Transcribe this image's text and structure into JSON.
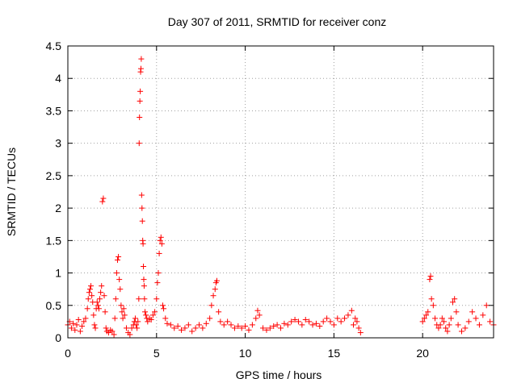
{
  "chart_data": {
    "type": "scatter",
    "title": "Day 307 of 2011, SRMTID for receiver conz",
    "xlabel": "GPS time / hours",
    "ylabel": "SRMTID / TECUs",
    "xlim": [
      0,
      24
    ],
    "ylim": [
      0,
      4.5
    ],
    "x_ticks": [
      0,
      5,
      10,
      15,
      20
    ],
    "x_tick_labels": [
      "0",
      "5",
      "10",
      "15",
      "20"
    ],
    "y_ticks": [
      0,
      0.5,
      1,
      1.5,
      2,
      2.5,
      3,
      3.5,
      4,
      4.5
    ],
    "y_tick_labels": [
      "0",
      "0.5",
      "1",
      "1.5",
      "2",
      "2.5",
      "3",
      "3.5",
      "4",
      "4.5"
    ],
    "grid": true,
    "marker": "+",
    "series": [
      {
        "color": "#ff0000",
        "points": [
          [
            0.0,
            0.2
          ],
          [
            0.1,
            0.25
          ],
          [
            0.2,
            0.15
          ],
          [
            0.3,
            0.22
          ],
          [
            0.4,
            0.12
          ],
          [
            0.5,
            0.2
          ],
          [
            0.6,
            0.28
          ],
          [
            0.7,
            0.1
          ],
          [
            0.8,
            0.18
          ],
          [
            0.9,
            0.25
          ],
          [
            1.0,
            0.3
          ],
          [
            1.1,
            0.45
          ],
          [
            1.15,
            0.6
          ],
          [
            1.2,
            0.7
          ],
          [
            1.25,
            0.75
          ],
          [
            1.3,
            0.8
          ],
          [
            1.35,
            0.65
          ],
          [
            1.4,
            0.55
          ],
          [
            1.45,
            0.35
          ],
          [
            1.5,
            0.2
          ],
          [
            1.55,
            0.15
          ],
          [
            1.6,
            0.45
          ],
          [
            1.65,
            0.55
          ],
          [
            1.7,
            0.5
          ],
          [
            1.75,
            0.45
          ],
          [
            1.8,
            0.6
          ],
          [
            1.85,
            0.7
          ],
          [
            1.9,
            0.8
          ],
          [
            1.95,
            2.1
          ],
          [
            2.0,
            2.15
          ],
          [
            2.05,
            0.65
          ],
          [
            2.1,
            0.4
          ],
          [
            2.15,
            0.15
          ],
          [
            2.2,
            0.1
          ],
          [
            2.3,
            0.08
          ],
          [
            2.4,
            0.12
          ],
          [
            2.5,
            0.1
          ],
          [
            2.6,
            0.05
          ],
          [
            2.65,
            0.3
          ],
          [
            2.7,
            0.6
          ],
          [
            2.75,
            1.0
          ],
          [
            2.8,
            1.2
          ],
          [
            2.85,
            1.25
          ],
          [
            2.9,
            0.9
          ],
          [
            2.95,
            0.75
          ],
          [
            3.0,
            0.5
          ],
          [
            3.05,
            0.4
          ],
          [
            3.1,
            0.3
          ],
          [
            3.15,
            0.45
          ],
          [
            3.2,
            0.35
          ],
          [
            3.3,
            0.15
          ],
          [
            3.4,
            0.08
          ],
          [
            3.5,
            0.05
          ],
          [
            3.6,
            0.15
          ],
          [
            3.7,
            0.2
          ],
          [
            3.75,
            0.25
          ],
          [
            3.8,
            0.3
          ],
          [
            3.85,
            0.2
          ],
          [
            3.9,
            0.15
          ],
          [
            3.95,
            0.25
          ],
          [
            4.0,
            0.6
          ],
          [
            4.02,
            3.0
          ],
          [
            4.04,
            3.4
          ],
          [
            4.06,
            3.65
          ],
          [
            4.08,
            3.8
          ],
          [
            4.1,
            4.1
          ],
          [
            4.12,
            4.15
          ],
          [
            4.14,
            4.3
          ],
          [
            4.16,
            2.2
          ],
          [
            4.18,
            2.0
          ],
          [
            4.2,
            1.8
          ],
          [
            4.22,
            1.5
          ],
          [
            4.24,
            1.45
          ],
          [
            4.26,
            1.1
          ],
          [
            4.28,
            0.9
          ],
          [
            4.3,
            0.8
          ],
          [
            4.32,
            0.6
          ],
          [
            4.35,
            0.4
          ],
          [
            4.4,
            0.35
          ],
          [
            4.45,
            0.3
          ],
          [
            4.5,
            0.25
          ],
          [
            4.6,
            0.3
          ],
          [
            4.7,
            0.28
          ],
          [
            4.8,
            0.35
          ],
          [
            4.9,
            0.4
          ],
          [
            5.0,
            0.6
          ],
          [
            5.05,
            0.85
          ],
          [
            5.1,
            1.0
          ],
          [
            5.15,
            1.3
          ],
          [
            5.2,
            1.5
          ],
          [
            5.25,
            1.55
          ],
          [
            5.3,
            1.45
          ],
          [
            5.35,
            0.5
          ],
          [
            5.4,
            0.45
          ],
          [
            5.5,
            0.3
          ],
          [
            5.6,
            0.22
          ],
          [
            5.8,
            0.2
          ],
          [
            6.0,
            0.15
          ],
          [
            6.2,
            0.18
          ],
          [
            6.4,
            0.12
          ],
          [
            6.6,
            0.15
          ],
          [
            6.8,
            0.2
          ],
          [
            7.0,
            0.1
          ],
          [
            7.2,
            0.15
          ],
          [
            7.4,
            0.2
          ],
          [
            7.6,
            0.15
          ],
          [
            7.8,
            0.22
          ],
          [
            8.0,
            0.3
          ],
          [
            8.1,
            0.5
          ],
          [
            8.2,
            0.65
          ],
          [
            8.3,
            0.75
          ],
          [
            8.35,
            0.85
          ],
          [
            8.4,
            0.88
          ],
          [
            8.5,
            0.4
          ],
          [
            8.6,
            0.25
          ],
          [
            8.8,
            0.2
          ],
          [
            9.0,
            0.25
          ],
          [
            9.2,
            0.2
          ],
          [
            9.4,
            0.15
          ],
          [
            9.6,
            0.18
          ],
          [
            9.8,
            0.15
          ],
          [
            10.0,
            0.18
          ],
          [
            10.2,
            0.12
          ],
          [
            10.4,
            0.2
          ],
          [
            10.6,
            0.3
          ],
          [
            10.7,
            0.42
          ],
          [
            10.8,
            0.35
          ],
          [
            11.0,
            0.15
          ],
          [
            11.2,
            0.12
          ],
          [
            11.4,
            0.15
          ],
          [
            11.6,
            0.18
          ],
          [
            11.8,
            0.2
          ],
          [
            12.0,
            0.15
          ],
          [
            12.2,
            0.22
          ],
          [
            12.4,
            0.2
          ],
          [
            12.6,
            0.25
          ],
          [
            12.8,
            0.28
          ],
          [
            13.0,
            0.25
          ],
          [
            13.2,
            0.2
          ],
          [
            13.4,
            0.28
          ],
          [
            13.6,
            0.25
          ],
          [
            13.8,
            0.2
          ],
          [
            14.0,
            0.22
          ],
          [
            14.2,
            0.18
          ],
          [
            14.4,
            0.25
          ],
          [
            14.6,
            0.3
          ],
          [
            14.8,
            0.25
          ],
          [
            15.0,
            0.2
          ],
          [
            15.2,
            0.3
          ],
          [
            15.4,
            0.25
          ],
          [
            15.6,
            0.3
          ],
          [
            15.8,
            0.35
          ],
          [
            16.0,
            0.42
          ],
          [
            16.1,
            0.2
          ],
          [
            16.2,
            0.3
          ],
          [
            16.3,
            0.25
          ],
          [
            16.4,
            0.15
          ],
          [
            16.5,
            0.08
          ],
          [
            20.0,
            0.25
          ],
          [
            20.1,
            0.3
          ],
          [
            20.2,
            0.35
          ],
          [
            20.3,
            0.4
          ],
          [
            20.4,
            0.9
          ],
          [
            20.45,
            0.95
          ],
          [
            20.5,
            0.6
          ],
          [
            20.6,
            0.5
          ],
          [
            20.7,
            0.3
          ],
          [
            20.8,
            0.2
          ],
          [
            20.9,
            0.15
          ],
          [
            21.0,
            0.2
          ],
          [
            21.1,
            0.3
          ],
          [
            21.2,
            0.25
          ],
          [
            21.3,
            0.15
          ],
          [
            21.4,
            0.1
          ],
          [
            21.5,
            0.2
          ],
          [
            21.6,
            0.3
          ],
          [
            21.7,
            0.55
          ],
          [
            21.8,
            0.6
          ],
          [
            21.9,
            0.4
          ],
          [
            22.0,
            0.2
          ],
          [
            22.2,
            0.1
          ],
          [
            22.4,
            0.15
          ],
          [
            22.6,
            0.25
          ],
          [
            22.8,
            0.4
          ],
          [
            23.0,
            0.3
          ],
          [
            23.2,
            0.2
          ],
          [
            23.4,
            0.35
          ],
          [
            23.6,
            0.5
          ],
          [
            23.8,
            0.25
          ],
          [
            24.0,
            0.2
          ]
        ]
      }
    ]
  }
}
